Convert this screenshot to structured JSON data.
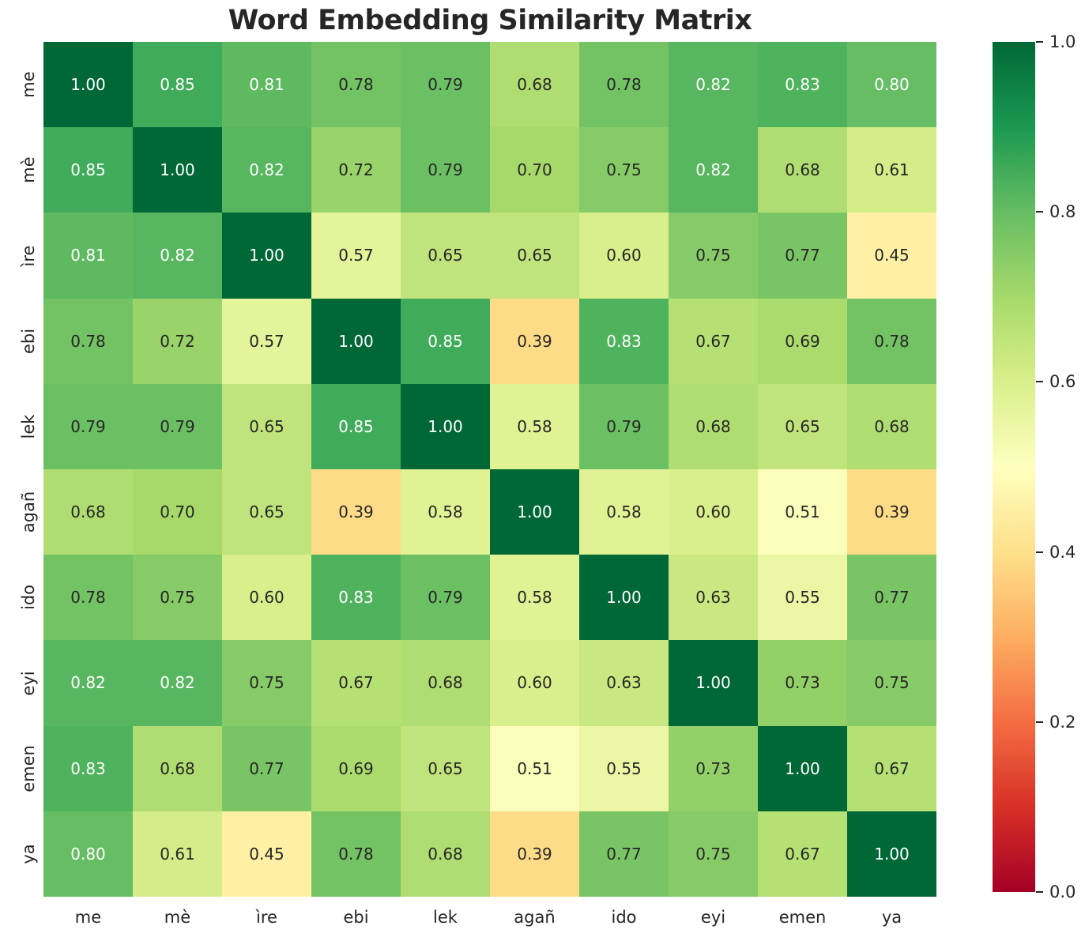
{
  "chart_data": {
    "type": "heatmap",
    "title": "Word Embedding Similarity Matrix",
    "labels": [
      "me",
      "mè",
      "ìre",
      "ebi",
      "lek",
      "agañ",
      "ido",
      "eyi",
      "emen",
      "ya"
    ],
    "matrix": [
      [
        1.0,
        0.85,
        0.81,
        0.78,
        0.79,
        0.68,
        0.78,
        0.82,
        0.83,
        0.8
      ],
      [
        0.85,
        1.0,
        0.82,
        0.72,
        0.79,
        0.7,
        0.75,
        0.82,
        0.68,
        0.61
      ],
      [
        0.81,
        0.82,
        1.0,
        0.57,
        0.65,
        0.65,
        0.6,
        0.75,
        0.77,
        0.45
      ],
      [
        0.78,
        0.72,
        0.57,
        1.0,
        0.85,
        0.39,
        0.83,
        0.67,
        0.69,
        0.78
      ],
      [
        0.79,
        0.79,
        0.65,
        0.85,
        1.0,
        0.58,
        0.79,
        0.68,
        0.65,
        0.68
      ],
      [
        0.68,
        0.7,
        0.65,
        0.39,
        0.58,
        1.0,
        0.58,
        0.6,
        0.51,
        0.39
      ],
      [
        0.78,
        0.75,
        0.6,
        0.83,
        0.79,
        0.58,
        1.0,
        0.63,
        0.55,
        0.77
      ],
      [
        0.82,
        0.82,
        0.75,
        0.67,
        0.68,
        0.6,
        0.63,
        1.0,
        0.73,
        0.75
      ],
      [
        0.83,
        0.68,
        0.77,
        0.69,
        0.65,
        0.51,
        0.55,
        0.73,
        1.0,
        0.67
      ],
      [
        0.8,
        0.61,
        0.45,
        0.78,
        0.68,
        0.39,
        0.77,
        0.75,
        0.67,
        1.0
      ]
    ],
    "vmin": 0.0,
    "vmax": 1.0,
    "value_decimals": 2,
    "colormap": {
      "name": "RdYlGn",
      "stops": [
        "#a50026",
        "#d73027",
        "#f46d43",
        "#fdae61",
        "#fee08b",
        "#ffffbf",
        "#d9ef8b",
        "#a6d96a",
        "#66bd63",
        "#1a9850",
        "#006837"
      ]
    },
    "annotation_colors": {
      "light": "#ffffff",
      "dark": "#262626"
    },
    "colorbar": {
      "position": "right",
      "tick_labels": [
        "1.0",
        "0.8",
        "0.6",
        "0.4",
        "0.2",
        "0.0"
      ]
    },
    "grid": false,
    "legend": false
  }
}
